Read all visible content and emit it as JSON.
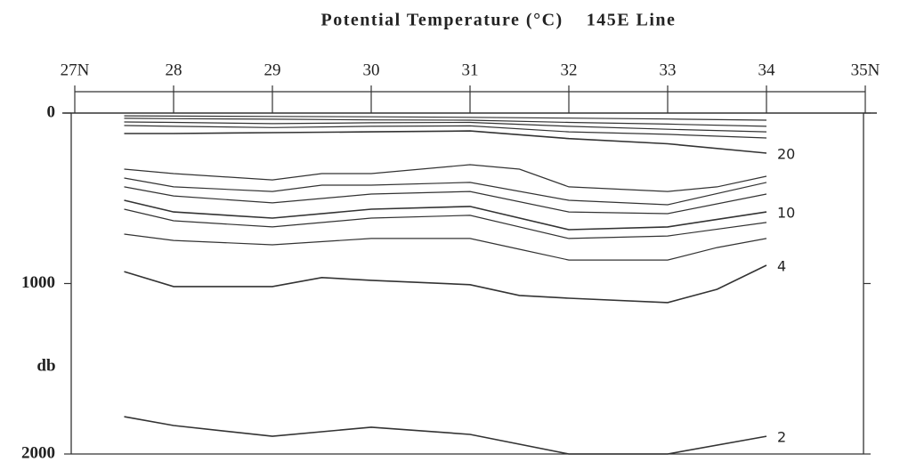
{
  "chart_data": {
    "type": "contour",
    "title": "Potential Temperature (°C)    145E Line",
    "y_label": "db",
    "xlim": [
      27,
      35
    ],
    "xticks": [
      {
        "value": 27,
        "label": "27N"
      },
      28,
      29,
      30,
      31,
      32,
      33,
      34,
      {
        "value": 35,
        "label": "35N"
      }
    ],
    "ylim": [
      0,
      2000
    ],
    "yticks": [
      0,
      1000,
      2000
    ],
    "y_inverted": true,
    "color": "#333333",
    "series": [
      {
        "x": [
          27.5,
          28,
          29,
          30,
          31,
          32,
          33,
          34
        ],
        "values": [
          16,
          18,
          20,
          22,
          25,
          30,
          35,
          42
        ]
      },
      {
        "x": [
          27.5,
          28,
          29,
          30,
          31,
          32,
          33,
          34
        ],
        "values": [
          31,
          33,
          36,
          40,
          42,
          55,
          65,
          78
        ]
      },
      {
        "x": [
          27.5,
          28,
          29,
          30,
          31,
          32,
          33,
          34
        ],
        "values": [
          52,
          55,
          62,
          57,
          55,
          78,
          95,
          110
        ]
      },
      {
        "x": [
          27.5,
          28,
          29,
          30,
          31,
          32,
          33,
          34
        ],
        "values": [
          73,
          78,
          85,
          78,
          75,
          110,
          125,
          146
        ]
      },
      {
        "name": "20",
        "x": [
          27.5,
          28,
          29,
          30,
          31,
          32,
          33,
          34
        ],
        "values": [
          120,
          120,
          115,
          110,
          105,
          150,
          180,
          235
        ]
      },
      {
        "x": [
          27.5,
          28,
          29,
          29.5,
          30,
          31,
          31.5,
          32,
          33,
          33.5,
          34
        ],
        "values": [
          329,
          355,
          392,
          355,
          355,
          303,
          329,
          433,
          460,
          433,
          371
        ]
      },
      {
        "x": [
          27.5,
          28,
          29,
          29.5,
          30,
          31,
          32,
          33,
          34
        ],
        "values": [
          381,
          433,
          460,
          423,
          423,
          407,
          512,
          538,
          407
        ]
      },
      {
        "x": [
          27.5,
          28,
          29,
          30,
          31,
          32,
          33,
          34
        ],
        "values": [
          433,
          486,
          527,
          475,
          460,
          580,
          590,
          475
        ]
      },
      {
        "name": "10",
        "x": [
          27.5,
          28,
          29,
          30,
          31,
          32,
          33,
          34
        ],
        "values": [
          512,
          580,
          616,
          564,
          548,
          684,
          668,
          580
        ]
      },
      {
        "x": [
          27.5,
          28,
          29,
          30,
          31,
          32,
          33,
          34
        ],
        "values": [
          564,
          632,
          668,
          616,
          600,
          736,
          721,
          642
        ]
      },
      {
        "x": [
          27.5,
          28,
          29,
          30,
          31,
          31.5,
          32,
          33,
          33.5,
          34
        ],
        "values": [
          710,
          747,
          773,
          736,
          736,
          799,
          862,
          862,
          789,
          736
        ]
      },
      {
        "name": "4",
        "x": [
          27.5,
          28,
          29,
          29.5,
          30,
          31,
          31.5,
          32,
          33,
          33.5,
          34
        ],
        "values": [
          930,
          1018,
          1018,
          965,
          981,
          1007,
          1070,
          1086,
          1112,
          1034,
          893
        ]
      },
      {
        "name": "2",
        "x": [
          27.5,
          28,
          29,
          30,
          31,
          32,
          33,
          34
        ],
        "values": [
          1781,
          1833,
          1896,
          1843,
          1885,
          2000,
          2000,
          1896
        ]
      }
    ]
  }
}
